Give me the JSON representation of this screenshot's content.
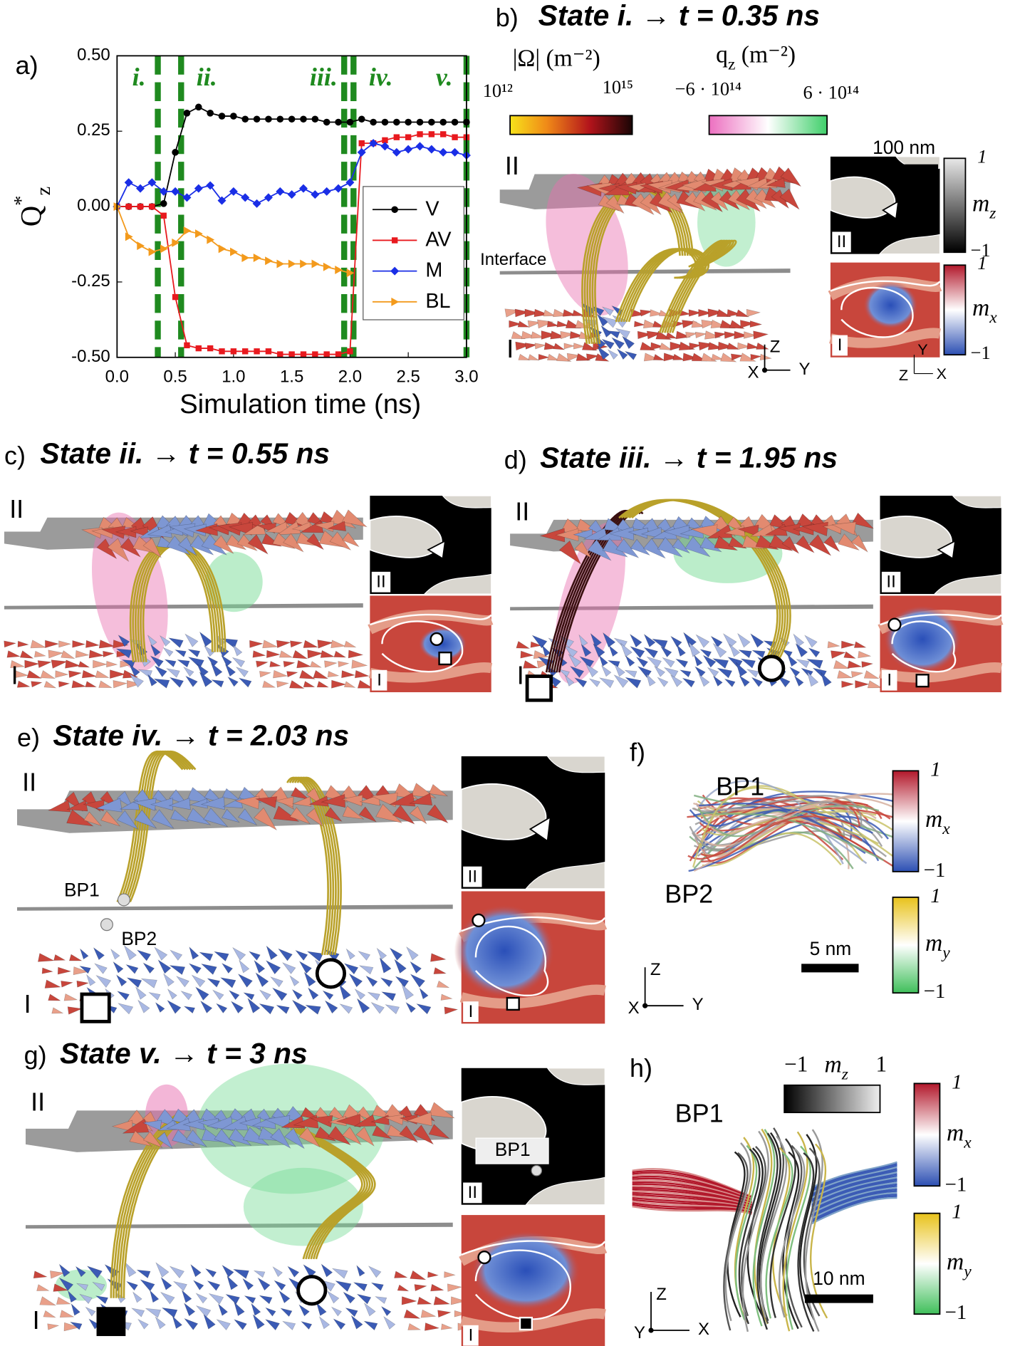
{
  "chart_data": {
    "type": "line",
    "panel_label": "a)",
    "xlabel": "Simulation time (ns)",
    "ylabel": "Q^*_z",
    "x": [
      0.0,
      0.1,
      0.2,
      0.3,
      0.4,
      0.5,
      0.6,
      0.7,
      0.8,
      0.9,
      1.0,
      1.1,
      1.2,
      1.3,
      1.4,
      1.5,
      1.6,
      1.7,
      1.8,
      1.9,
      2.0,
      2.1,
      2.2,
      2.3,
      2.4,
      2.5,
      2.6,
      2.7,
      2.8,
      2.9,
      3.0
    ],
    "series": [
      {
        "name": "V",
        "color": "#000000",
        "marker": "circle",
        "values": [
          0,
          0,
          0,
          0,
          0.01,
          0.18,
          0.31,
          0.33,
          0.31,
          0.3,
          0.3,
          0.29,
          0.29,
          0.29,
          0.29,
          0.29,
          0.29,
          0.29,
          0.28,
          0.28,
          0.28,
          0.29,
          0.28,
          0.28,
          0.28,
          0.28,
          0.28,
          0.28,
          0.28,
          0.28,
          0.28
        ]
      },
      {
        "name": "AV",
        "color": "#e8191e",
        "marker": "square",
        "values": [
          0,
          0,
          0,
          0,
          -0.03,
          -0.3,
          -0.46,
          -0.47,
          -0.47,
          -0.48,
          -0.48,
          -0.48,
          -0.48,
          -0.48,
          -0.49,
          -0.49,
          -0.49,
          -0.49,
          -0.49,
          -0.49,
          -0.48,
          0.21,
          0.21,
          0.22,
          0.23,
          0.23,
          0.24,
          0.24,
          0.24,
          0.23,
          0.23
        ]
      },
      {
        "name": "M",
        "color": "#1a2ee6",
        "marker": "diamond",
        "values": [
          0,
          0.08,
          0.06,
          0.08,
          0.05,
          0.05,
          0.03,
          0.06,
          0.07,
          0.02,
          0.05,
          0.03,
          0.01,
          0.03,
          0.05,
          0.04,
          0.06,
          0.04,
          0.05,
          0.06,
          0.08,
          0.18,
          0.21,
          0.2,
          0.18,
          0.19,
          0.2,
          0.19,
          0.18,
          0.18,
          0.17
        ]
      },
      {
        "name": "BL",
        "color": "#f39a1c",
        "marker": "triangle",
        "values": [
          0,
          -0.1,
          -0.13,
          -0.15,
          -0.14,
          -0.12,
          -0.08,
          -0.09,
          -0.11,
          -0.14,
          -0.15,
          -0.17,
          -0.17,
          -0.18,
          -0.19,
          -0.19,
          -0.19,
          -0.19,
          -0.2,
          -0.21,
          -0.22,
          null,
          null,
          null,
          null,
          null,
          null,
          null,
          null,
          null,
          null
        ]
      }
    ],
    "xlim": [
      0,
      3
    ],
    "xticks": [
      {
        "value": 0,
        "label": "0.0"
      },
      {
        "value": 0.5,
        "label": "0.5"
      },
      {
        "value": 1,
        "label": "1.0"
      },
      {
        "value": 1.5,
        "label": "1.5"
      },
      {
        "value": 2,
        "label": "2.0"
      },
      {
        "value": 2.5,
        "label": "2.5"
      },
      {
        "value": 3,
        "label": "3.0"
      }
    ],
    "ylim": [
      -0.5,
      0.5
    ],
    "yticks": [
      {
        "value": -0.5,
        "label": "-0.50"
      },
      {
        "value": -0.25,
        "label": "-0.25"
      },
      {
        "value": 0,
        "label": "0.00"
      },
      {
        "value": 0.25,
        "label": "0.25"
      },
      {
        "value": 0.5,
        "label": "0.50"
      }
    ],
    "state_markers": [
      {
        "value": 0.35,
        "label": "i."
      },
      {
        "value": 0.55,
        "label": "ii."
      },
      {
        "value": 1.95,
        "label": "iii."
      },
      {
        "value": 2.03,
        "label": "iv."
      },
      {
        "value": 3,
        "label": "v."
      }
    ],
    "state_marker_color": "#1f8a1f",
    "legend": "right"
  },
  "panels": {
    "b": {
      "label": "b)",
      "title": "State i. → t = 0.35 ns",
      "omega_label": "|Ω| (m⁻²)",
      "omega_min": "10¹²",
      "omega_max": "10¹⁵",
      "qz_label": "q_z (m⁻²)",
      "qz_min": "−6 · 10¹⁴",
      "qz_max": "6 · 10¹⁴",
      "layer_top": "II",
      "layer_bottom": "I",
      "interface": "Interface",
      "scale": "100 nm",
      "mz_label": "m_z",
      "mx_label": "m_x",
      "cb_max": "1",
      "cb_min": "−1",
      "axis_z": "Z",
      "axis_x": "X",
      "axis_y": "Y"
    },
    "c": {
      "label": "c)",
      "title": "State ii. → t = 0.55 ns",
      "layer_top": "II",
      "layer_bottom": "I"
    },
    "d": {
      "label": "d)",
      "title": "State iii. → t = 1.95 ns",
      "layer_top": "II",
      "layer_bottom": "I"
    },
    "e": {
      "label": "e)",
      "title": "State iv. → t = 2.03 ns",
      "layer_top": "II",
      "layer_bottom": "I",
      "bp1": "BP1",
      "bp2": "BP2"
    },
    "f": {
      "label": "f)",
      "bp1": "BP1",
      "bp2": "BP2",
      "scale": "5 nm",
      "mx_label": "m_x",
      "my_label": "m_y",
      "cb_max": "1",
      "cb_min": "−1",
      "axis_z": "Z",
      "axis_x": "X",
      "axis_y": "Y"
    },
    "g": {
      "label": "g)",
      "title": "State v. → t = 3 ns",
      "layer_top": "II",
      "layer_bottom": "I",
      "bp1": "BP1"
    },
    "h": {
      "label": "h)",
      "bp1": "BP1",
      "mz_label": "m_z",
      "mz_min": "−1",
      "mz_max": "1",
      "mx_label": "m_x",
      "my_label": "m_y",
      "cb_max": "1",
      "cb_min": "−1",
      "scale": "10 nm",
      "axis_z": "Z",
      "axis_x": "X",
      "axis_y": "Y"
    }
  }
}
